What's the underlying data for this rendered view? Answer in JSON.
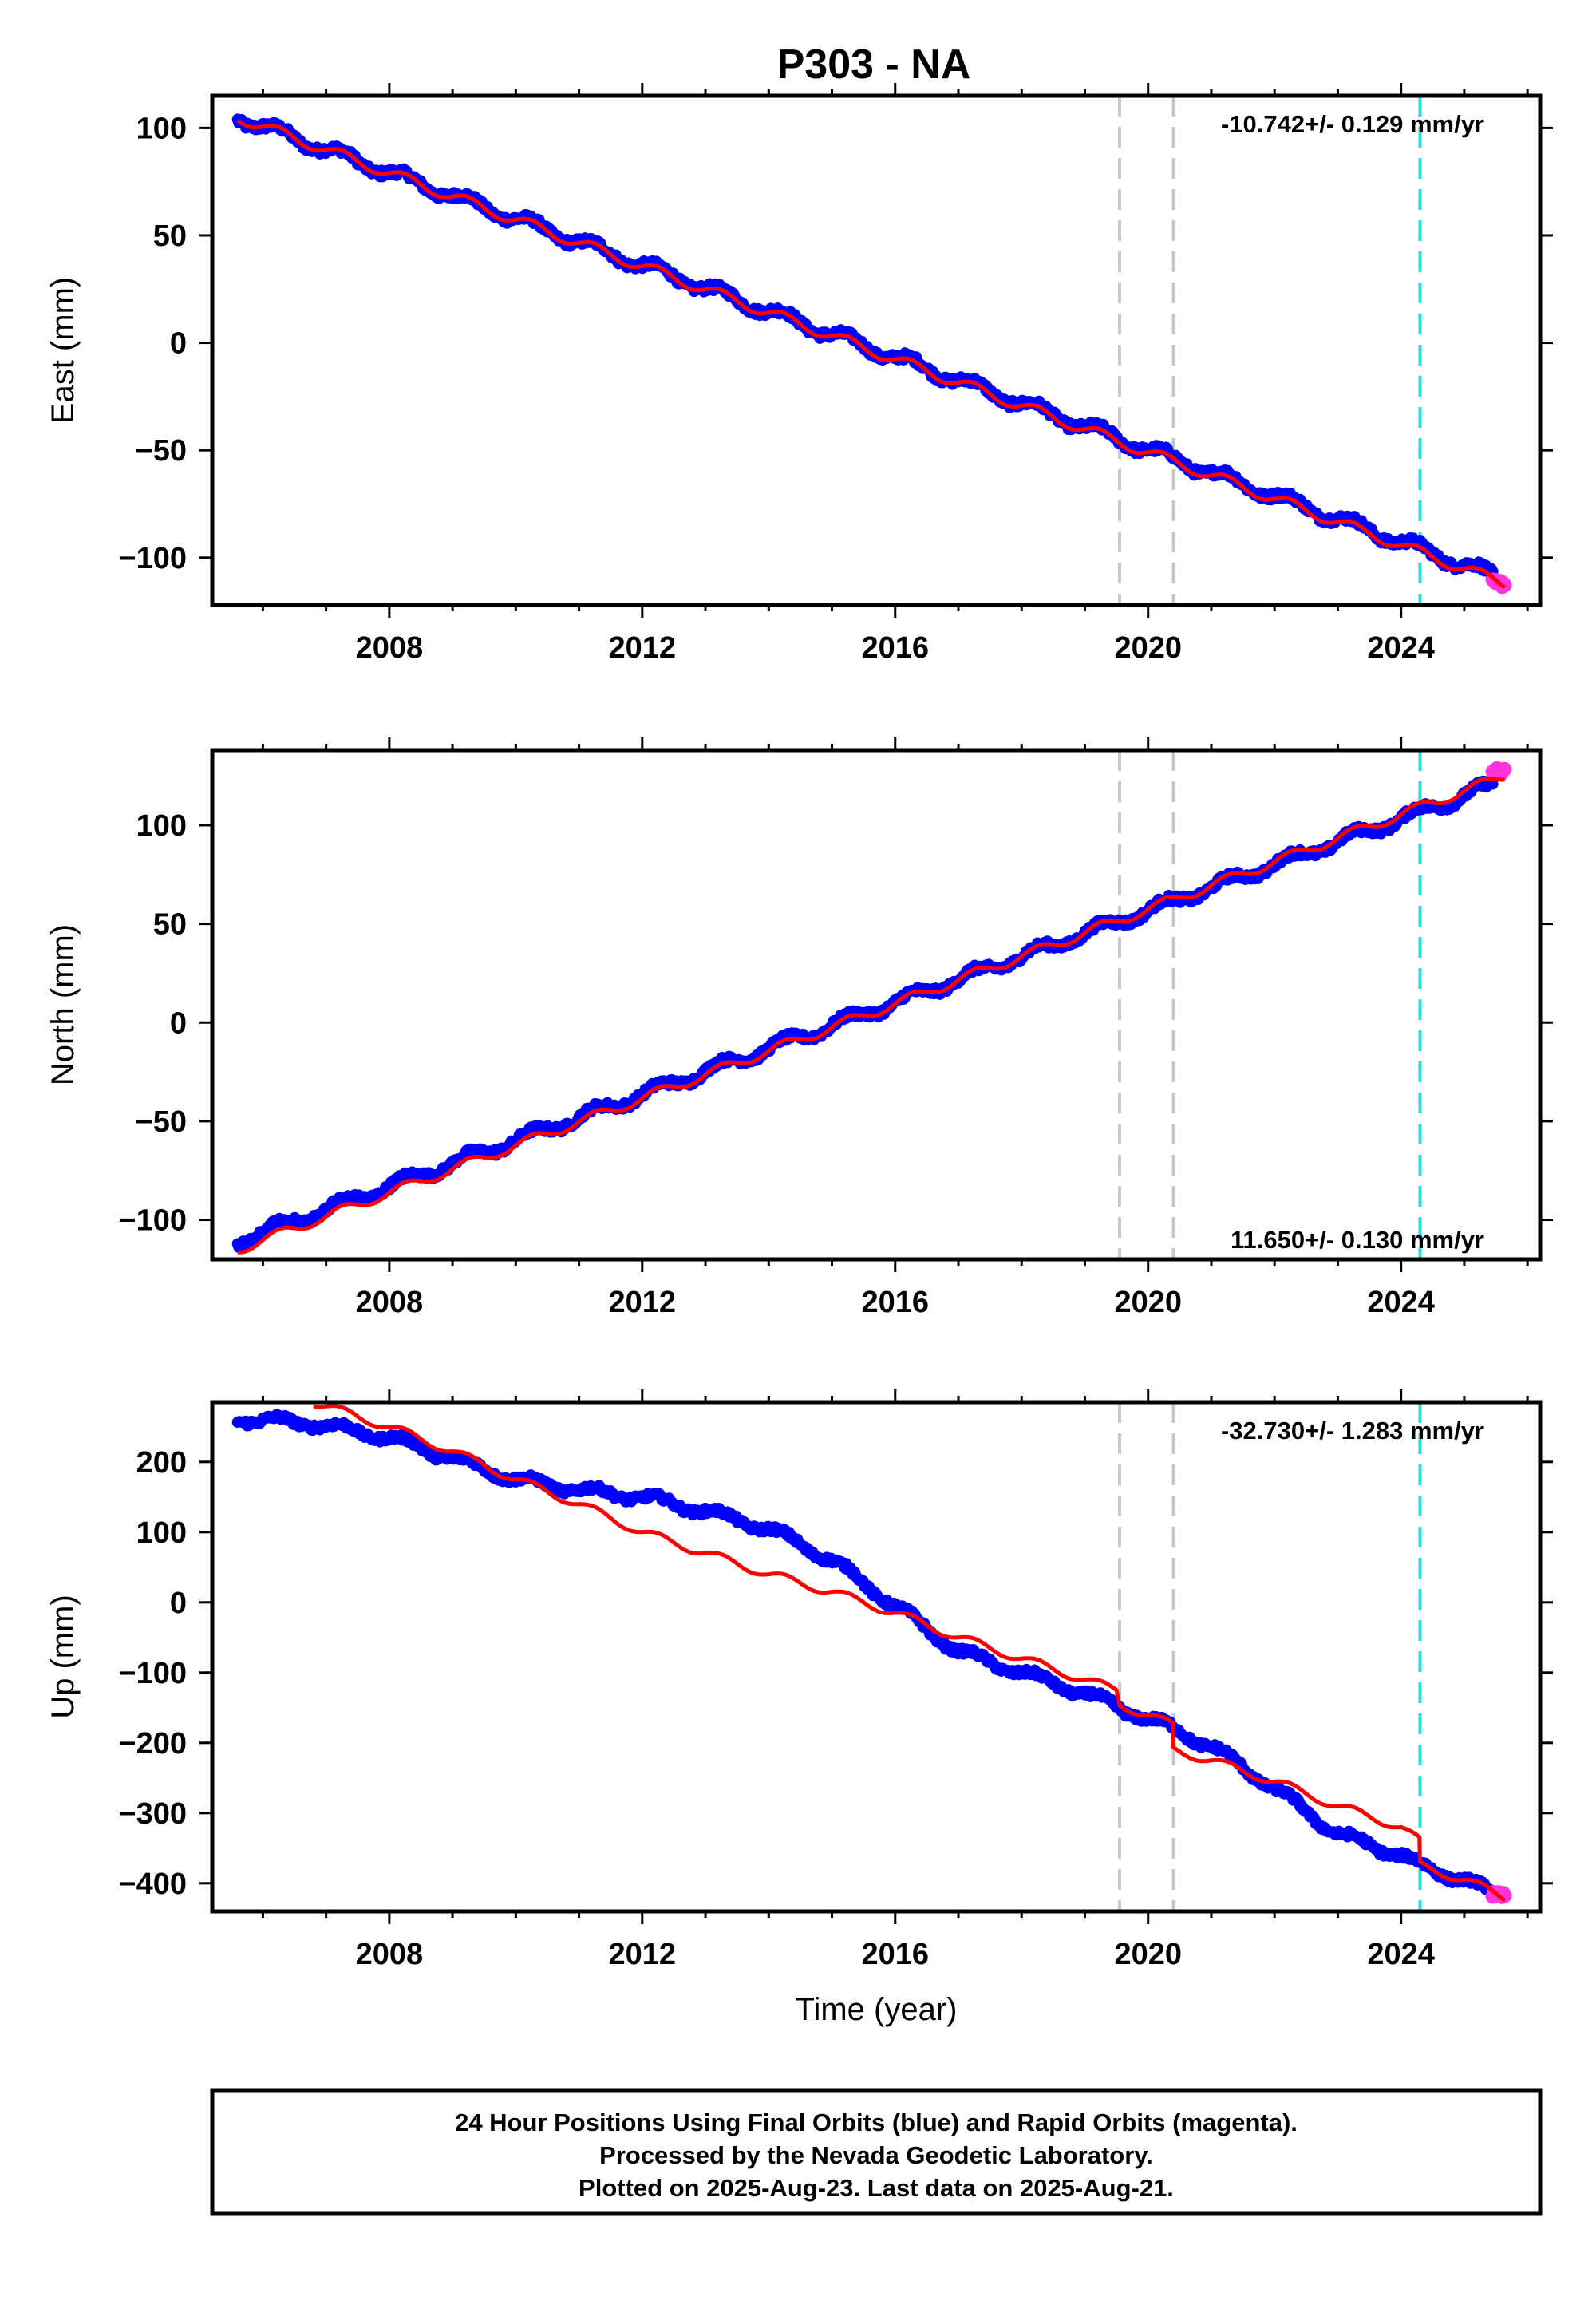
{
  "title": "P303 - NA",
  "footer": {
    "lines": [
      "24 Hour Positions Using Final Orbits (blue) and Rapid Orbits (magenta).",
      "Processed by the Nevada Geodetic Laboratory.",
      "Plotted on 2025-Aug-23. Last data on 2025-Aug-21."
    ]
  },
  "colors": {
    "final_orbits": "#0000ff",
    "rapid_orbits": "#ff33dd",
    "model": "#ff0000",
    "equipment_change": "#c8c8c8",
    "event": "#22dddd"
  },
  "chart_data": [
    {
      "type": "scatter",
      "component": "East",
      "ylabel": "East (mm)",
      "xlabel": "",
      "xlim": [
        2005.2,
        2026.2
      ],
      "ylim": [
        -122,
        115
      ],
      "x_ticks": [
        2008,
        2012,
        2016,
        2020,
        2024
      ],
      "y_ticks": [
        -100,
        -50,
        0,
        50,
        100
      ],
      "rate_label": "-10.742+/- 0.129 mm/yr",
      "rate_position": "top-right",
      "gray_dashed_lines": [
        2019.55,
        2020.4
      ],
      "cyan_dashed_lines": [
        2024.3
      ],
      "series": [
        {
          "name": "Final Orbits (blue)",
          "color": "blue",
          "x_range": [
            2005.6,
            2025.45
          ],
          "intercept_y": 105,
          "rate": -10.742,
          "seasonal_amplitude": 2.5
        },
        {
          "name": "Rapid Orbits (magenta)",
          "color": "magenta",
          "x_range": [
            2025.45,
            2025.64
          ],
          "approx_y": -112
        }
      ],
      "model_line": {
        "x_range": [
          2005.6,
          2025.64
        ],
        "y_start": 105,
        "y_end": -112,
        "offsets": []
      }
    },
    {
      "type": "scatter",
      "component": "North",
      "ylabel": "North (mm)",
      "xlabel": "",
      "xlim": [
        2005.2,
        2026.2
      ],
      "ylim": [
        -120,
        138
      ],
      "x_ticks": [
        2008,
        2012,
        2016,
        2020,
        2024
      ],
      "y_ticks": [
        -100,
        -50,
        0,
        50,
        100
      ],
      "rate_label": "11.650+/- 0.130 mm/yr",
      "rate_position": "bottom-right",
      "gray_dashed_lines": [
        2019.55,
        2020.4
      ],
      "cyan_dashed_lines": [
        2024.3
      ],
      "series": [
        {
          "name": "Final Orbits (blue)",
          "color": "blue",
          "x_range": [
            2005.6,
            2025.45
          ],
          "intercept_y": -111,
          "rate": 11.65,
          "seasonal_amplitude": 2.5
        },
        {
          "name": "Rapid Orbits (magenta)",
          "color": "magenta",
          "x_range": [
            2025.45,
            2025.64
          ],
          "approx_y": 127
        }
      ],
      "model_line": {
        "x_range": [
          2005.6,
          2025.64
        ],
        "y_start": -115,
        "y_end": 125,
        "offsets": []
      }
    },
    {
      "type": "scatter",
      "component": "Up",
      "ylabel": "Up (mm)",
      "xlabel": "Time (year)",
      "xlim": [
        2005.2,
        2026.2
      ],
      "ylim": [
        -440,
        285
      ],
      "x_ticks": [
        2008,
        2012,
        2016,
        2020,
        2024
      ],
      "y_ticks": [
        -400,
        -300,
        -200,
        -100,
        0,
        100,
        200
      ],
      "rate_label": "-32.730+/- 1.283 mm/yr",
      "rate_position": "top-right",
      "gray_dashed_lines": [
        2019.55,
        2020.4
      ],
      "cyan_dashed_lines": [
        2024.3
      ],
      "series": [
        {
          "name": "Final Orbits (blue)",
          "color": "blue",
          "x": [
            2005.6,
            2006.8,
            2008.0,
            2009.0,
            2010.0,
            2011.0,
            2012.0,
            2013.0,
            2014.0,
            2015.0,
            2016.0,
            2017.0,
            2018.0,
            2019.0,
            2019.55,
            2020.4,
            2021.0,
            2022.0,
            2023.0,
            2024.0,
            2024.3,
            2025.0,
            2025.45
          ],
          "y": [
            262,
            255,
            235,
            205,
            175,
            160,
            150,
            130,
            105,
            60,
            -5,
            -70,
            -100,
            -130,
            -150,
            -180,
            -205,
            -265,
            -330,
            -360,
            -375,
            -395,
            -415
          ],
          "seasonal_amplitude": 6
        },
        {
          "name": "Rapid Orbits (magenta)",
          "color": "magenta",
          "x_range": [
            2025.45,
            2025.64
          ],
          "approx_y": -418
        }
      ],
      "model_line": {
        "x": [
          2006.8,
          2008.0,
          2009.0,
          2010.0,
          2011.0,
          2012.0,
          2013.0,
          2014.0,
          2015.0,
          2016.0,
          2017.0,
          2018.0,
          2019.0,
          2019.5,
          2019.55,
          2020.39,
          2020.4,
          2021.0,
          2022.0,
          2023.0,
          2024.0,
          2024.29,
          2024.3,
          2025.0,
          2025.64
        ],
        "y": [
          285,
          250,
          215,
          175,
          140,
          100,
          70,
          40,
          15,
          -15,
          -50,
          -80,
          -110,
          -125,
          -145,
          -175,
          -210,
          -225,
          -255,
          -290,
          -320,
          -340,
          -375,
          -395,
          -420
        ],
        "seasonal_amplitude": 6
      }
    }
  ]
}
